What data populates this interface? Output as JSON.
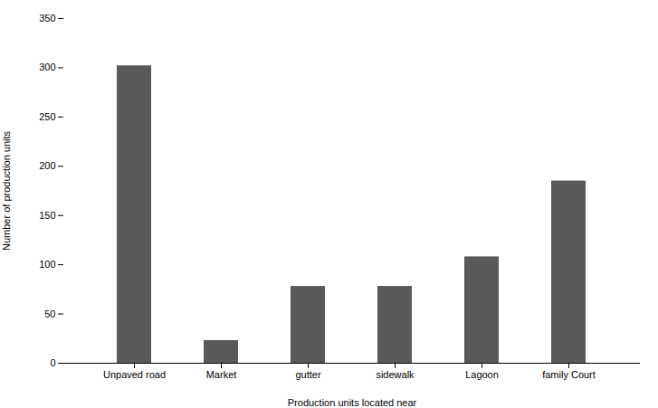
{
  "chart_data": {
    "type": "bar",
    "categories": [
      "Unpaved road",
      "Market",
      "gutter",
      "sidewalk",
      "Lagoon",
      "family Court"
    ],
    "values": [
      302,
      23,
      78,
      78,
      108,
      185
    ],
    "color": "#595959",
    "xlabel": "Production units located near",
    "ylabel": "Number of production units",
    "ylim": [
      0,
      350
    ],
    "yticks": [
      0,
      50,
      100,
      150,
      200,
      250,
      300,
      350
    ],
    "grid": false
  }
}
